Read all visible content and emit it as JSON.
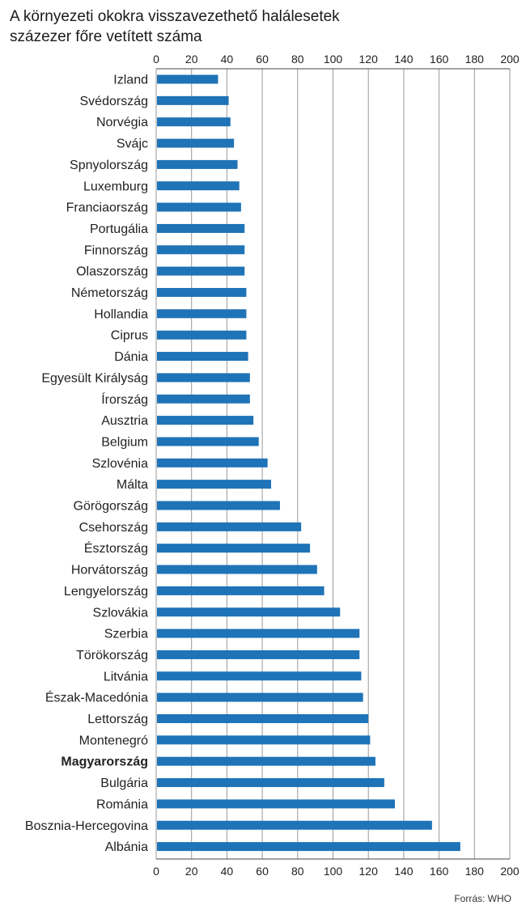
{
  "title_line1": "A környezeti okokra visszavezethető halálesetek",
  "title_line2": "százezer főre vetített száma",
  "source": "Forrás: WHO",
  "colors": {
    "bar": "#1f73b7",
    "grid": "#9a9a9a",
    "axis": "#444444"
  },
  "chart_data": {
    "type": "bar",
    "orientation": "horizontal",
    "title": "A környezeti okokra visszavezethető halálesetek százezer főre vetített száma",
    "xlim": [
      0,
      200
    ],
    "ticks": [
      0,
      20,
      40,
      60,
      80,
      100,
      120,
      140,
      160,
      180,
      200
    ],
    "axis_positions": [
      "top",
      "bottom"
    ],
    "grid": true,
    "highlight": "Magyarország",
    "categories": [
      "Izland",
      "Svédország",
      "Norvégia",
      "Svájc",
      "Spnyolország",
      "Luxemburg",
      "Franciaország",
      "Portugália",
      "Finnország",
      "Olaszország",
      "Németország",
      "Hollandia",
      "Ciprus",
      "Dánia",
      "Egyesült Királyság",
      "Írország",
      "Ausztria",
      "Belgium",
      "Szlovénia",
      "Málta",
      "Görögország",
      "Csehország",
      "Észtország",
      "Horvátország",
      "Lengyelország",
      "Szlovákia",
      "Szerbia",
      "Törökország",
      "Litvánia",
      "Észak-Macedónia",
      "Lettország",
      "Montenegró",
      "Magyarország",
      "Bulgária",
      "Románia",
      "Bosznia-Hercegovina",
      "Albánia"
    ],
    "values": [
      35,
      41,
      42,
      44,
      46,
      47,
      48,
      50,
      50,
      50,
      51,
      51,
      51,
      52,
      53,
      53,
      55,
      58,
      63,
      65,
      70,
      82,
      87,
      91,
      95,
      104,
      115,
      115,
      116,
      117,
      120,
      121,
      124,
      129,
      135,
      156,
      172
    ]
  }
}
